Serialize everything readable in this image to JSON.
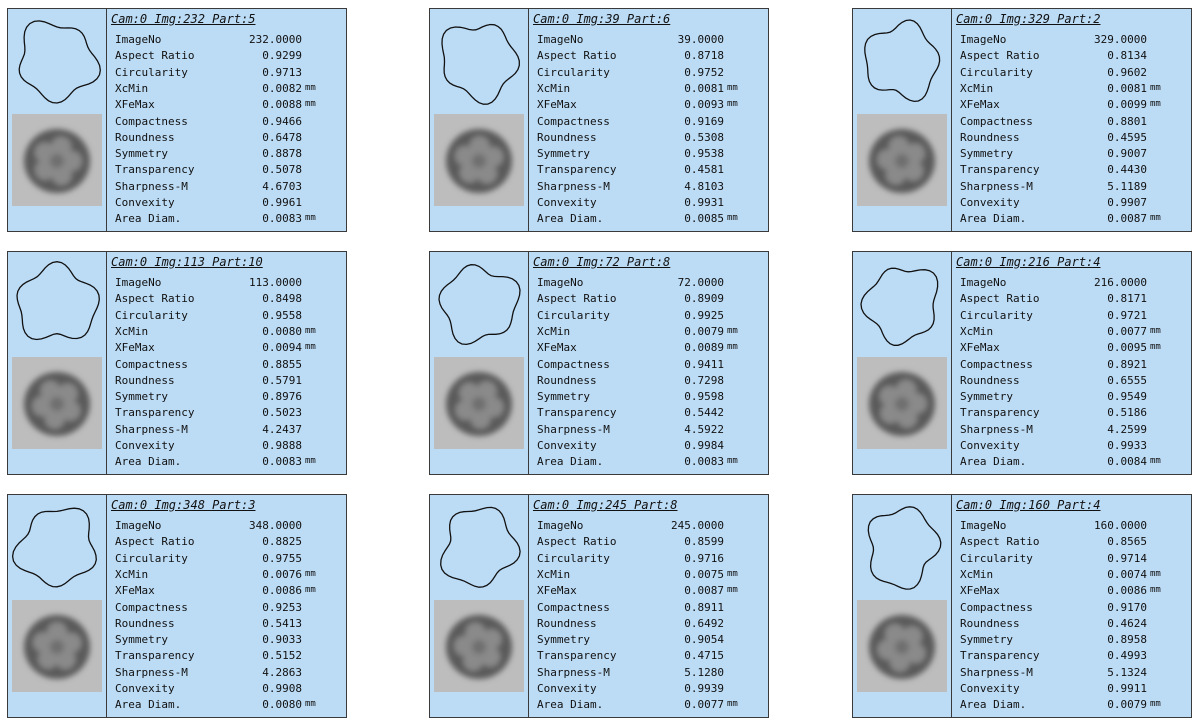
{
  "cards": [
    {
      "title": "Cam:0 Img:232 Part:5",
      "rows": [
        {
          "label": "ImageNo",
          "value": "232.0000"
        },
        {
          "label": "Aspect Ratio",
          "value": "0.9299"
        },
        {
          "label": "Circularity",
          "value": "0.9713"
        },
        {
          "label": "XcMin",
          "value": "0.0082",
          "unit": "mm"
        },
        {
          "label": "XFeMax",
          "value": "0.0088",
          "unit": "mm"
        },
        {
          "label": "Compactness",
          "value": "0.9466"
        },
        {
          "label": "Roundness",
          "value": "0.6478"
        },
        {
          "label": "Symmetry",
          "value": "0.8878"
        },
        {
          "label": "Transparency",
          "value": "0.5078"
        },
        {
          "label": "Sharpness-M",
          "value": "4.6703"
        },
        {
          "label": "Convexity",
          "value": "0.9961"
        },
        {
          "label": "Area Diam.",
          "value": "0.0083",
          "unit": "mm"
        }
      ]
    },
    {
      "title": "Cam:0 Img:39 Part:6",
      "rows": [
        {
          "label": "ImageNo",
          "value": "39.0000"
        },
        {
          "label": "Aspect Ratio",
          "value": "0.8718"
        },
        {
          "label": "Circularity",
          "value": "0.9752"
        },
        {
          "label": "XcMin",
          "value": "0.0081",
          "unit": "mm"
        },
        {
          "label": "XFeMax",
          "value": "0.0093",
          "unit": "mm"
        },
        {
          "label": "Compactness",
          "value": "0.9169"
        },
        {
          "label": "Roundness",
          "value": "0.5308"
        },
        {
          "label": "Symmetry",
          "value": "0.9538"
        },
        {
          "label": "Transparency",
          "value": "0.4581"
        },
        {
          "label": "Sharpness-M",
          "value": "4.8103"
        },
        {
          "label": "Convexity",
          "value": "0.9931"
        },
        {
          "label": "Area Diam.",
          "value": "0.0085",
          "unit": "mm"
        }
      ]
    },
    {
      "title": "Cam:0 Img:329 Part:2",
      "rows": [
        {
          "label": "ImageNo",
          "value": "329.0000"
        },
        {
          "label": "Aspect Ratio",
          "value": "0.8134"
        },
        {
          "label": "Circularity",
          "value": "0.9602"
        },
        {
          "label": "XcMin",
          "value": "0.0081",
          "unit": "mm"
        },
        {
          "label": "XFeMax",
          "value": "0.0099",
          "unit": "mm"
        },
        {
          "label": "Compactness",
          "value": "0.8801"
        },
        {
          "label": "Roundness",
          "value": "0.4595"
        },
        {
          "label": "Symmetry",
          "value": "0.9007"
        },
        {
          "label": "Transparency",
          "value": "0.4430"
        },
        {
          "label": "Sharpness-M",
          "value": "5.1189"
        },
        {
          "label": "Convexity",
          "value": "0.9907"
        },
        {
          "label": "Area Diam.",
          "value": "0.0087",
          "unit": "mm"
        }
      ]
    },
    {
      "title": "Cam:0 Img:113 Part:10",
      "rows": [
        {
          "label": "ImageNo",
          "value": "113.0000"
        },
        {
          "label": "Aspect Ratio",
          "value": "0.8498"
        },
        {
          "label": "Circularity",
          "value": "0.9558"
        },
        {
          "label": "XcMin",
          "value": "0.0080",
          "unit": "mm"
        },
        {
          "label": "XFeMax",
          "value": "0.0094",
          "unit": "mm"
        },
        {
          "label": "Compactness",
          "value": "0.8855"
        },
        {
          "label": "Roundness",
          "value": "0.5791"
        },
        {
          "label": "Symmetry",
          "value": "0.8976"
        },
        {
          "label": "Transparency",
          "value": "0.5023"
        },
        {
          "label": "Sharpness-M",
          "value": "4.2437"
        },
        {
          "label": "Convexity",
          "value": "0.9888"
        },
        {
          "label": "Area Diam.",
          "value": "0.0083",
          "unit": "mm"
        }
      ]
    },
    {
      "title": "Cam:0 Img:72 Part:8",
      "rows": [
        {
          "label": "ImageNo",
          "value": "72.0000"
        },
        {
          "label": "Aspect Ratio",
          "value": "0.8909"
        },
        {
          "label": "Circularity",
          "value": "0.9925"
        },
        {
          "label": "XcMin",
          "value": "0.0079",
          "unit": "mm"
        },
        {
          "label": "XFeMax",
          "value": "0.0089",
          "unit": "mm"
        },
        {
          "label": "Compactness",
          "value": "0.9411"
        },
        {
          "label": "Roundness",
          "value": "0.7298"
        },
        {
          "label": "Symmetry",
          "value": "0.9598"
        },
        {
          "label": "Transparency",
          "value": "0.5442"
        },
        {
          "label": "Sharpness-M",
          "value": "4.5922"
        },
        {
          "label": "Convexity",
          "value": "0.9984"
        },
        {
          "label": "Area Diam.",
          "value": "0.0083",
          "unit": "mm"
        }
      ]
    },
    {
      "title": "Cam:0 Img:216 Part:4",
      "rows": [
        {
          "label": "ImageNo",
          "value": "216.0000"
        },
        {
          "label": "Aspect Ratio",
          "value": "0.8171"
        },
        {
          "label": "Circularity",
          "value": "0.9721"
        },
        {
          "label": "XcMin",
          "value": "0.0077",
          "unit": "mm"
        },
        {
          "label": "XFeMax",
          "value": "0.0095",
          "unit": "mm"
        },
        {
          "label": "Compactness",
          "value": "0.8921"
        },
        {
          "label": "Roundness",
          "value": "0.6555"
        },
        {
          "label": "Symmetry",
          "value": "0.9549"
        },
        {
          "label": "Transparency",
          "value": "0.5186"
        },
        {
          "label": "Sharpness-M",
          "value": "4.2599"
        },
        {
          "label": "Convexity",
          "value": "0.9933"
        },
        {
          "label": "Area Diam.",
          "value": "0.0084",
          "unit": "mm"
        }
      ]
    },
    {
      "title": "Cam:0 Img:348 Part:3",
      "rows": [
        {
          "label": "ImageNo",
          "value": "348.0000"
        },
        {
          "label": "Aspect Ratio",
          "value": "0.8825"
        },
        {
          "label": "Circularity",
          "value": "0.9755"
        },
        {
          "label": "XcMin",
          "value": "0.0076",
          "unit": "mm"
        },
        {
          "label": "XFeMax",
          "value": "0.0086",
          "unit": "mm"
        },
        {
          "label": "Compactness",
          "value": "0.9253"
        },
        {
          "label": "Roundness",
          "value": "0.5413"
        },
        {
          "label": "Symmetry",
          "value": "0.9033"
        },
        {
          "label": "Transparency",
          "value": "0.5152"
        },
        {
          "label": "Sharpness-M",
          "value": "4.2863"
        },
        {
          "label": "Convexity",
          "value": "0.9908"
        },
        {
          "label": "Area Diam.",
          "value": "0.0080",
          "unit": "mm"
        }
      ]
    },
    {
      "title": "Cam:0 Img:245 Part:8",
      "rows": [
        {
          "label": "ImageNo",
          "value": "245.0000"
        },
        {
          "label": "Aspect Ratio",
          "value": "0.8599"
        },
        {
          "label": "Circularity",
          "value": "0.9716"
        },
        {
          "label": "XcMin",
          "value": "0.0075",
          "unit": "mm"
        },
        {
          "label": "XFeMax",
          "value": "0.0087",
          "unit": "mm"
        },
        {
          "label": "Compactness",
          "value": "0.8911"
        },
        {
          "label": "Roundness",
          "value": "0.6492"
        },
        {
          "label": "Symmetry",
          "value": "0.9054"
        },
        {
          "label": "Transparency",
          "value": "0.4715"
        },
        {
          "label": "Sharpness-M",
          "value": "5.1280"
        },
        {
          "label": "Convexity",
          "value": "0.9939"
        },
        {
          "label": "Area Diam.",
          "value": "0.0077",
          "unit": "mm"
        }
      ]
    },
    {
      "title": "Cam:0 Img:160 Part:4",
      "rows": [
        {
          "label": "ImageNo",
          "value": "160.0000"
        },
        {
          "label": "Aspect Ratio",
          "value": "0.8565"
        },
        {
          "label": "Circularity",
          "value": "0.9714"
        },
        {
          "label": "XcMin",
          "value": "0.0074",
          "unit": "mm"
        },
        {
          "label": "XFeMax",
          "value": "0.0086",
          "unit": "mm"
        },
        {
          "label": "Compactness",
          "value": "0.9170"
        },
        {
          "label": "Roundness",
          "value": "0.4624"
        },
        {
          "label": "Symmetry",
          "value": "0.8958"
        },
        {
          "label": "Transparency",
          "value": "0.4993"
        },
        {
          "label": "Sharpness-M",
          "value": "5.1324"
        },
        {
          "label": "Convexity",
          "value": "0.9911"
        },
        {
          "label": "Area Diam.",
          "value": "0.0079",
          "unit": "mm"
        }
      ]
    }
  ]
}
